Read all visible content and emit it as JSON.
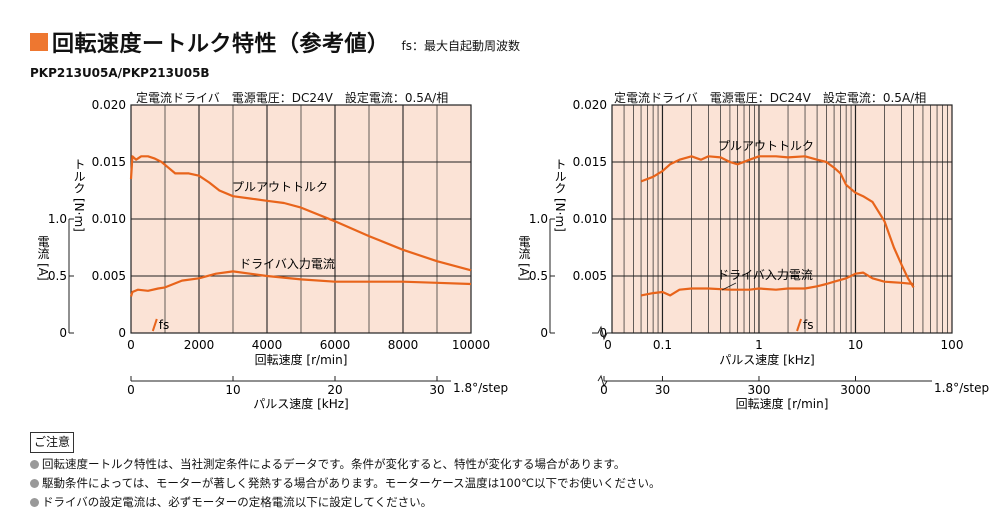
{
  "header": {
    "title": "回転速度ートルク特性（参考値）",
    "fs_note": "fs：最大自起動周波数",
    "model": "PKP213U05A/PKP213U05B"
  },
  "colors": {
    "accent": "#ee7730",
    "curve": "#e8641b",
    "plot_bg": "#fbe3d6",
    "grid": "#222222"
  },
  "chart_data": [
    {
      "type": "line",
      "conditions": "定電流ドライバ　電源電圧：DC24V　設定電流：0.5A/相",
      "xscale": "linear",
      "xlim": [
        0,
        10000
      ],
      "xticks": [
        "0",
        "2000",
        "4000",
        "6000",
        "8000",
        "10000"
      ],
      "xlabel": "回転速度 [r/min]",
      "ylim": [
        0,
        0.02
      ],
      "yticks": [
        "0",
        "0.005",
        "0.010",
        "0.015",
        "0.020"
      ],
      "ylabel": "トルク [N·m]",
      "y2ticks": [
        "0",
        "0.5",
        "1.0"
      ],
      "y2label": "電流 [A]",
      "x2ticks": [
        "0",
        "10",
        "20",
        "30"
      ],
      "x2label": "パルス速度 [kHz]",
      "x2suffix": "1.8°/step",
      "fs_label": "fs",
      "fs_x": 700,
      "series": [
        {
          "name": "プルアウトトルク",
          "x": [
            0,
            40,
            150,
            300,
            500,
            700,
            900,
            1100,
            1300,
            1500,
            1700,
            2000,
            2300,
            2600,
            3000,
            3500,
            4000,
            4500,
            5000,
            6000,
            7000,
            8000,
            9000,
            10000
          ],
          "y": [
            0.0135,
            0.0155,
            0.0152,
            0.0155,
            0.0155,
            0.0153,
            0.015,
            0.0145,
            0.014,
            0.014,
            0.014,
            0.0138,
            0.0132,
            0.0125,
            0.012,
            0.0118,
            0.0116,
            0.0114,
            0.011,
            0.0098,
            0.0085,
            0.0073,
            0.0063,
            0.0055
          ]
        },
        {
          "name": "ドライバ入力電流",
          "x": [
            0,
            40,
            200,
            500,
            800,
            1000,
            1500,
            2000,
            2500,
            3000,
            3500,
            4000,
            5000,
            6000,
            7000,
            8000,
            9000,
            10000
          ],
          "y": [
            0.0032,
            0.0036,
            0.0038,
            0.0037,
            0.0039,
            0.004,
            0.0046,
            0.0048,
            0.0052,
            0.0054,
            0.0052,
            0.005,
            0.0047,
            0.0045,
            0.0045,
            0.0045,
            0.0044,
            0.0043
          ]
        }
      ]
    },
    {
      "type": "line",
      "conditions": "定電流ドライバ　電源電圧：DC24V　設定電流：0.5A/相",
      "xscale": "log",
      "xlim": [
        0.03,
        100
      ],
      "xticks": [
        "0",
        "0.1",
        "1",
        "10",
        "100"
      ],
      "xlabel": "パルス速度 [kHz]",
      "ylim": [
        0,
        0.02
      ],
      "yticks": [
        "0",
        "0.005",
        "0.010",
        "0.015",
        "0.020"
      ],
      "ylabel": "トルク [N·m]",
      "y2ticks": [
        "0",
        "0.5",
        "1.0"
      ],
      "y2label": "電流 [A]",
      "x2ticks": [
        "0",
        "30",
        "300",
        "3000"
      ],
      "x2label": "回転速度 [r/min]",
      "x2suffix": "1.8°/step",
      "fs_label": "fs",
      "fs_x": 2.6,
      "series": [
        {
          "name": "プルアウトトルク",
          "x": [
            0.06,
            0.08,
            0.1,
            0.12,
            0.15,
            0.2,
            0.25,
            0.3,
            0.4,
            0.5,
            0.6,
            0.8,
            1,
            1.5,
            2,
            3,
            4,
            5,
            6,
            7,
            8,
            10,
            12,
            15,
            20,
            25,
            30,
            35,
            40
          ],
          "y": [
            0.0133,
            0.0137,
            0.0142,
            0.0148,
            0.0152,
            0.0155,
            0.0152,
            0.0155,
            0.0154,
            0.015,
            0.0148,
            0.0152,
            0.0155,
            0.0155,
            0.0154,
            0.0155,
            0.0152,
            0.015,
            0.0145,
            0.014,
            0.013,
            0.0123,
            0.012,
            0.0115,
            0.0098,
            0.0075,
            0.006,
            0.0048,
            0.004
          ]
        },
        {
          "name": "ドライバ入力電流",
          "x": [
            0.06,
            0.08,
            0.1,
            0.12,
            0.15,
            0.2,
            0.3,
            0.5,
            0.8,
            1,
            1.5,
            2,
            3,
            4,
            5,
            6,
            8,
            10,
            12,
            15,
            20,
            30,
            40
          ],
          "y": [
            0.0033,
            0.0035,
            0.0036,
            0.0033,
            0.0038,
            0.0039,
            0.0039,
            0.0038,
            0.0038,
            0.0039,
            0.0038,
            0.0039,
            0.0039,
            0.0041,
            0.0043,
            0.0045,
            0.0048,
            0.0052,
            0.0053,
            0.0048,
            0.0045,
            0.0044,
            0.0043
          ]
        }
      ]
    }
  ],
  "notes": {
    "heading": "ご注意",
    "items": [
      "回転速度ートルク特性は、当社測定条件によるデータです。条件が変化すると、特性が変化する場合があります。",
      "駆動条件によっては、モーターが著しく発熱する場合があります。モーターケース温度は100℃以下でお使いください。",
      "ドライバの設定電流は、必ずモーターの定格電流以下に設定してください。"
    ]
  }
}
